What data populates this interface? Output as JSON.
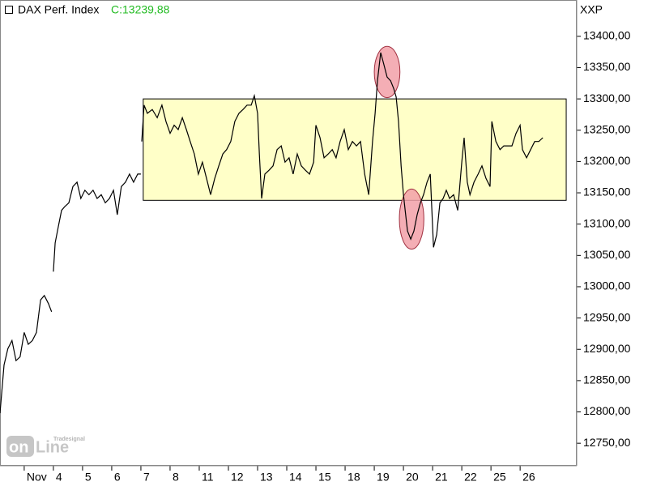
{
  "chart_data": {
    "type": "line",
    "title": "DAX Perf. Index",
    "last_close": "C:13239,88",
    "last_close_color": "#22bb22",
    "axis_unit": "XXP",
    "logo": {
      "brand": "Tradesignal",
      "word1": "on",
      "word2": "Line"
    },
    "x": [
      -1.83,
      -1.69,
      -1.56,
      -1.42,
      -1.28,
      -1.14,
      -1,
      -0.86,
      -0.72,
      -0.58,
      -0.44,
      -0.31,
      -0.17,
      -0.06,
      null,
      0,
      0.06,
      0.17,
      0.28,
      0.39,
      0.53,
      0.67,
      0.81,
      0.94,
      1.08,
      1.22,
      1.36,
      1.5,
      1.64,
      1.78,
      1.92,
      2.06,
      2.19,
      2.33,
      2.47,
      2.61,
      2.75,
      2.89,
      3,
      null,
      3.03,
      3.11,
      3.22,
      3.39,
      3.56,
      3.72,
      3.86,
      4,
      4.14,
      4.28,
      4.42,
      4.56,
      4.69,
      4.83,
      4.97,
      5.11,
      5.25,
      5.39,
      5.53,
      5.67,
      5.81,
      5.94,
      6.08,
      6.22,
      6.36,
      6.5,
      6.64,
      6.78,
      6.89,
      7,
      7.06,
      7.14,
      7.25,
      7.39,
      7.53,
      7.67,
      7.81,
      7.94,
      8.08,
      8.22,
      8.36,
      8.5,
      8.64,
      8.78,
      8.92,
      9,
      9.14,
      9.28,
      9.42,
      9.56,
      9.69,
      9.83,
      9.97,
      10.11,
      10.25,
      10.39,
      10.53,
      10.67,
      10.81,
      10.94,
      11.03,
      11.11,
      11.22,
      11.33,
      11.44,
      11.56,
      11.67,
      11.75,
      11.83,
      11.92,
      12,
      12.06,
      12.14,
      12.25,
      12.36,
      12.47,
      12.58,
      12.69,
      12.81,
      12.92,
      13.03,
      13.14,
      13.25,
      13.36,
      13.47,
      13.58,
      13.72,
      13.86,
      14,
      14.08,
      14.19,
      14.28,
      14.42,
      14.56,
      14.69,
      14.83,
      14.97,
      15.03,
      15.17,
      15.31,
      15.44,
      15.58,
      15.72,
      15.86,
      16,
      16.08,
      16.22,
      16.36,
      16.5,
      16.64,
      16.78
    ],
    "series": [
      {
        "name": "DAX Perf. Index",
        "color": "#000000",
        "values": [
          12798,
          12875,
          12901,
          12914,
          12882,
          12888,
          12927,
          12908,
          12914,
          12927,
          12979,
          12986,
          12973,
          12960,
          null,
          13024,
          13070,
          13096,
          13122,
          13128,
          13134,
          13160,
          13167,
          13141,
          13154,
          13147,
          13154,
          13141,
          13147,
          13134,
          13141,
          13154,
          13115,
          13160,
          13167,
          13180,
          13167,
          13180,
          13180,
          null,
          13232,
          13290,
          13277,
          13283,
          13270,
          13290,
          13264,
          13245,
          13258,
          13251,
          13270,
          13251,
          13232,
          13212,
          13180,
          13199,
          13173,
          13147,
          13173,
          13193,
          13212,
          13219,
          13232,
          13264,
          13277,
          13283,
          13290,
          13290,
          13305,
          13277,
          13212,
          13141,
          13180,
          13186,
          13193,
          13219,
          13225,
          13199,
          13206,
          13180,
          13212,
          13193,
          13186,
          13180,
          13199,
          13258,
          13238,
          13206,
          13212,
          13219,
          13206,
          13232,
          13251,
          13219,
          13232,
          13225,
          13232,
          13180,
          13147,
          13232,
          13277,
          13329,
          13374,
          13355,
          13335,
          13329,
          13316,
          13303,
          13264,
          13193,
          13147,
          13122,
          13089,
          13076,
          13089,
          13115,
          13134,
          13147,
          13167,
          13180,
          13063,
          13083,
          13134,
          13141,
          13154,
          13141,
          13147,
          13122,
          13199,
          13238,
          13167,
          13147,
          13167,
          13180,
          13193,
          13173,
          13160,
          13264,
          13232,
          13219,
          13225,
          13225,
          13225,
          13245,
          13258,
          13219,
          13206,
          13219,
          13232,
          13232,
          13238
        ]
      }
    ],
    "xlim": [
      -1.83,
      17.94
    ],
    "xticks": [
      {
        "value": -1,
        "label": "Nov"
      },
      {
        "value": 0,
        "label": "4"
      },
      {
        "value": 1,
        "label": "5"
      },
      {
        "value": 2,
        "label": "6"
      },
      {
        "value": 3,
        "label": "7"
      },
      {
        "value": 4,
        "label": "8"
      },
      {
        "value": 5,
        "label": "11"
      },
      {
        "value": 6,
        "label": "12"
      },
      {
        "value": 7,
        "label": "13"
      },
      {
        "value": 8,
        "label": "14"
      },
      {
        "value": 9,
        "label": "15"
      },
      {
        "value": 10,
        "label": "18"
      },
      {
        "value": 11,
        "label": "19"
      },
      {
        "value": 12,
        "label": "20"
      },
      {
        "value": 13,
        "label": "21"
      },
      {
        "value": 14,
        "label": "22"
      },
      {
        "value": 15,
        "label": "25"
      },
      {
        "value": 16,
        "label": "26"
      }
    ],
    "ylim": [
      12714,
      13458
    ],
    "yticks": [
      {
        "value": 12750,
        "label": "12750,00"
      },
      {
        "value": 12800,
        "label": "12800,00"
      },
      {
        "value": 12850,
        "label": "12850,00"
      },
      {
        "value": 12900,
        "label": "12900,00"
      },
      {
        "value": 12950,
        "label": "12950,00"
      },
      {
        "value": 13000,
        "label": "13000,00"
      },
      {
        "value": 13050,
        "label": "13050,00"
      },
      {
        "value": 13100,
        "label": "13100,00"
      },
      {
        "value": 13150,
        "label": "13150,00"
      },
      {
        "value": 13200,
        "label": "13200,00"
      },
      {
        "value": 13250,
        "label": "13250,00"
      },
      {
        "value": 13300,
        "label": "13300,00"
      },
      {
        "value": 13350,
        "label": "13350,00"
      },
      {
        "value": 13400,
        "label": "13400,00"
      }
    ],
    "annotations": {
      "box": {
        "x": [
          3.08,
          17.58
        ],
        "y": [
          13138,
          13300
        ],
        "color": "#ffffc8"
      },
      "ellipses": [
        {
          "x": 11.44,
          "y": 13343,
          "rx": 0.44,
          "ry": 41,
          "color": "#f2a0a8"
        },
        {
          "x": 12.28,
          "y": 13108,
          "rx": 0.42,
          "ry": 48,
          "color": "#f2a0a8"
        }
      ]
    }
  }
}
